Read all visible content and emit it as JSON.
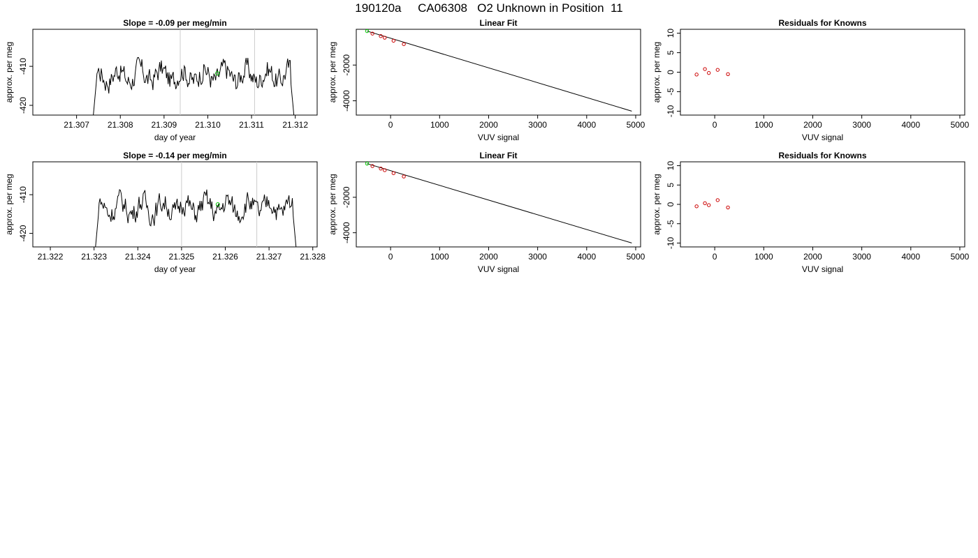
{
  "page_title": "190120a     CA06308   O2 Unknown in Position  11",
  "chart_data": [
    {
      "type": "line",
      "title": "Slope =  -0.09  per meg/min",
      "xlabel": "day of year",
      "ylabel": "approx. per meg",
      "xlim": [
        21.306,
        21.3125
      ],
      "ylim": [
        -422.5,
        -400.5
      ],
      "xticks": [
        "21.307",
        "21.308",
        "21.309",
        "21.310",
        "21.311",
        "21.312"
      ],
      "yticks": [
        "-410",
        "-420"
      ],
      "vlines": [
        21.30937,
        21.31107
      ],
      "trace": {
        "x_start": 21.30735,
        "x_end": 21.312
      },
      "highlight_point": {
        "x": 21.31022,
        "y": -411.8,
        "color": "#00c800"
      }
    },
    {
      "type": "scatter",
      "title": "Linear Fit",
      "xlabel": "VUV signal",
      "ylabel": "approx. per meg",
      "xlim": [
        -700,
        5100
      ],
      "ylim": [
        -4800,
        0
      ],
      "xticks": [
        "0",
        "1000",
        "2000",
        "3000",
        "4000",
        "5000"
      ],
      "yticks": [
        "-2000",
        "-4000"
      ],
      "fit_line": {
        "x": [
          -480,
          4920
        ],
        "y": [
          -100,
          -4580
        ]
      },
      "points": [
        {
          "x": -480,
          "y": -100,
          "color": "#00c800"
        },
        {
          "x": -370,
          "y": -240,
          "color": "#cc0000"
        },
        {
          "x": -200,
          "y": -380,
          "color": "#cc0000"
        },
        {
          "x": -120,
          "y": -470,
          "color": "#cc0000"
        },
        {
          "x": 60,
          "y": -640,
          "color": "#cc0000"
        },
        {
          "x": 270,
          "y": -830,
          "color": "#cc0000"
        }
      ]
    },
    {
      "type": "scatter",
      "title": "Residuals for Knowns",
      "xlabel": "VUV signal",
      "ylabel": "approx. per meg",
      "xlim": [
        -700,
        5100
      ],
      "ylim": [
        -11,
        11
      ],
      "xticks": [
        "0",
        "1000",
        "2000",
        "3000",
        "4000",
        "5000"
      ],
      "yticks": [
        "10",
        "5",
        "0",
        "-5",
        "-10"
      ],
      "points": [
        {
          "x": -370,
          "y": -0.6,
          "color": "#cc0000"
        },
        {
          "x": -200,
          "y": 0.8,
          "color": "#cc0000"
        },
        {
          "x": -120,
          "y": -0.2,
          "color": "#cc0000"
        },
        {
          "x": 60,
          "y": 0.6,
          "color": "#cc0000"
        },
        {
          "x": 270,
          "y": -0.5,
          "color": "#cc0000"
        }
      ]
    },
    {
      "type": "line",
      "title": "Slope =  -0.14  per meg/min",
      "xlabel": "day of year",
      "ylabel": "approx. per meg",
      "xlim": [
        21.3216,
        21.3281
      ],
      "ylim": [
        -423.5,
        -401.5
      ],
      "xticks": [
        "21.322",
        "21.323",
        "21.324",
        "21.325",
        "21.326",
        "21.327",
        "21.328"
      ],
      "yticks": [
        "-410",
        "-420"
      ],
      "vlines": [
        21.325,
        21.32672
      ],
      "trace": {
        "x_start": 21.323,
        "x_end": 21.32765
      },
      "highlight_point": {
        "x": 21.32583,
        "y": -412.5,
        "color": "#00c800"
      }
    },
    {
      "type": "scatter",
      "title": "Linear Fit",
      "xlabel": "VUV signal",
      "ylabel": "approx. per meg",
      "xlim": [
        -700,
        5100
      ],
      "ylim": [
        -4800,
        0
      ],
      "xticks": [
        "0",
        "1000",
        "2000",
        "3000",
        "4000",
        "5000"
      ],
      "yticks": [
        "-2000",
        "-4000"
      ],
      "fit_line": {
        "x": [
          -480,
          4920
        ],
        "y": [
          -100,
          -4580
        ]
      },
      "points": [
        {
          "x": -480,
          "y": -100,
          "color": "#00c800"
        },
        {
          "x": -370,
          "y": -240,
          "color": "#cc0000"
        },
        {
          "x": -200,
          "y": -380,
          "color": "#cc0000"
        },
        {
          "x": -120,
          "y": -470,
          "color": "#cc0000"
        },
        {
          "x": 60,
          "y": -640,
          "color": "#cc0000"
        },
        {
          "x": 270,
          "y": -830,
          "color": "#cc0000"
        }
      ]
    },
    {
      "type": "scatter",
      "title": "Residuals for Knowns",
      "xlabel": "VUV signal",
      "ylabel": "approx. per meg",
      "xlim": [
        -700,
        5100
      ],
      "ylim": [
        -11,
        11
      ],
      "xticks": [
        "0",
        "1000",
        "2000",
        "3000",
        "4000",
        "5000"
      ],
      "yticks": [
        "10",
        "5",
        "0",
        "-5",
        "-10"
      ],
      "points": [
        {
          "x": -370,
          "y": -0.5,
          "color": "#cc0000"
        },
        {
          "x": -200,
          "y": 0.3,
          "color": "#cc0000"
        },
        {
          "x": -120,
          "y": -0.2,
          "color": "#cc0000"
        },
        {
          "x": 60,
          "y": 1.1,
          "color": "#cc0000"
        },
        {
          "x": 270,
          "y": -0.8,
          "color": "#cc0000"
        }
      ]
    }
  ]
}
